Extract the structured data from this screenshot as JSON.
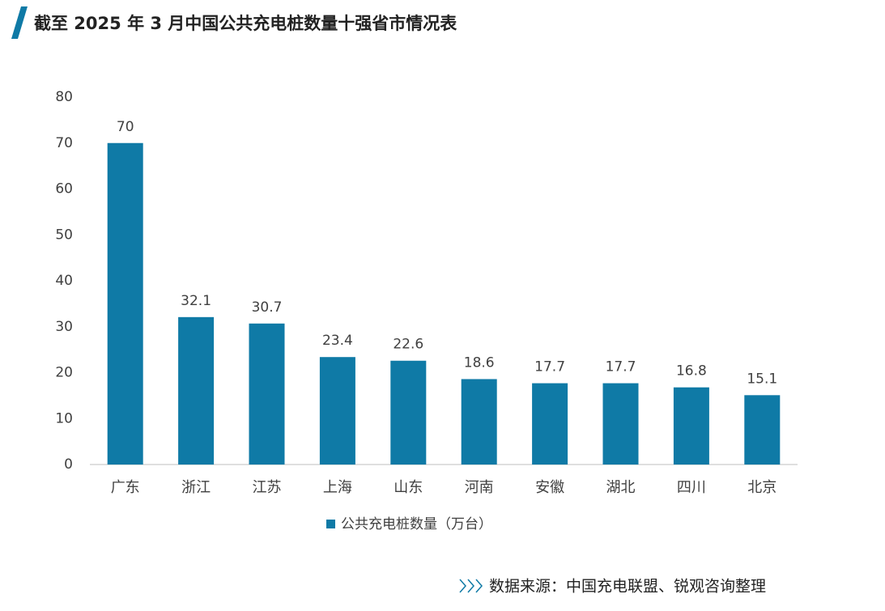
{
  "chart_data": {
    "type": "bar",
    "title": "截至 2025 年 3 月中国公共充电桩数量十强省市情况表",
    "categories": [
      "广东",
      "浙江",
      "江苏",
      "上海",
      "山东",
      "河南",
      "安徽",
      "湖北",
      "四川",
      "北京"
    ],
    "series": [
      {
        "name": "公共充电桩数量（万台）",
        "color": "#0f7aa6",
        "values": [
          70,
          32.1,
          30.7,
          23.4,
          22.6,
          18.6,
          17.7,
          17.7,
          16.8,
          15.1
        ]
      }
    ],
    "ylim": [
      0,
      80
    ],
    "yticks": [
      0,
      10,
      20,
      30,
      40,
      50,
      60,
      70,
      80
    ],
    "grid": false,
    "legend": "bottom",
    "source": "数据来源：中国充电联盟、锐观咨询整理"
  }
}
